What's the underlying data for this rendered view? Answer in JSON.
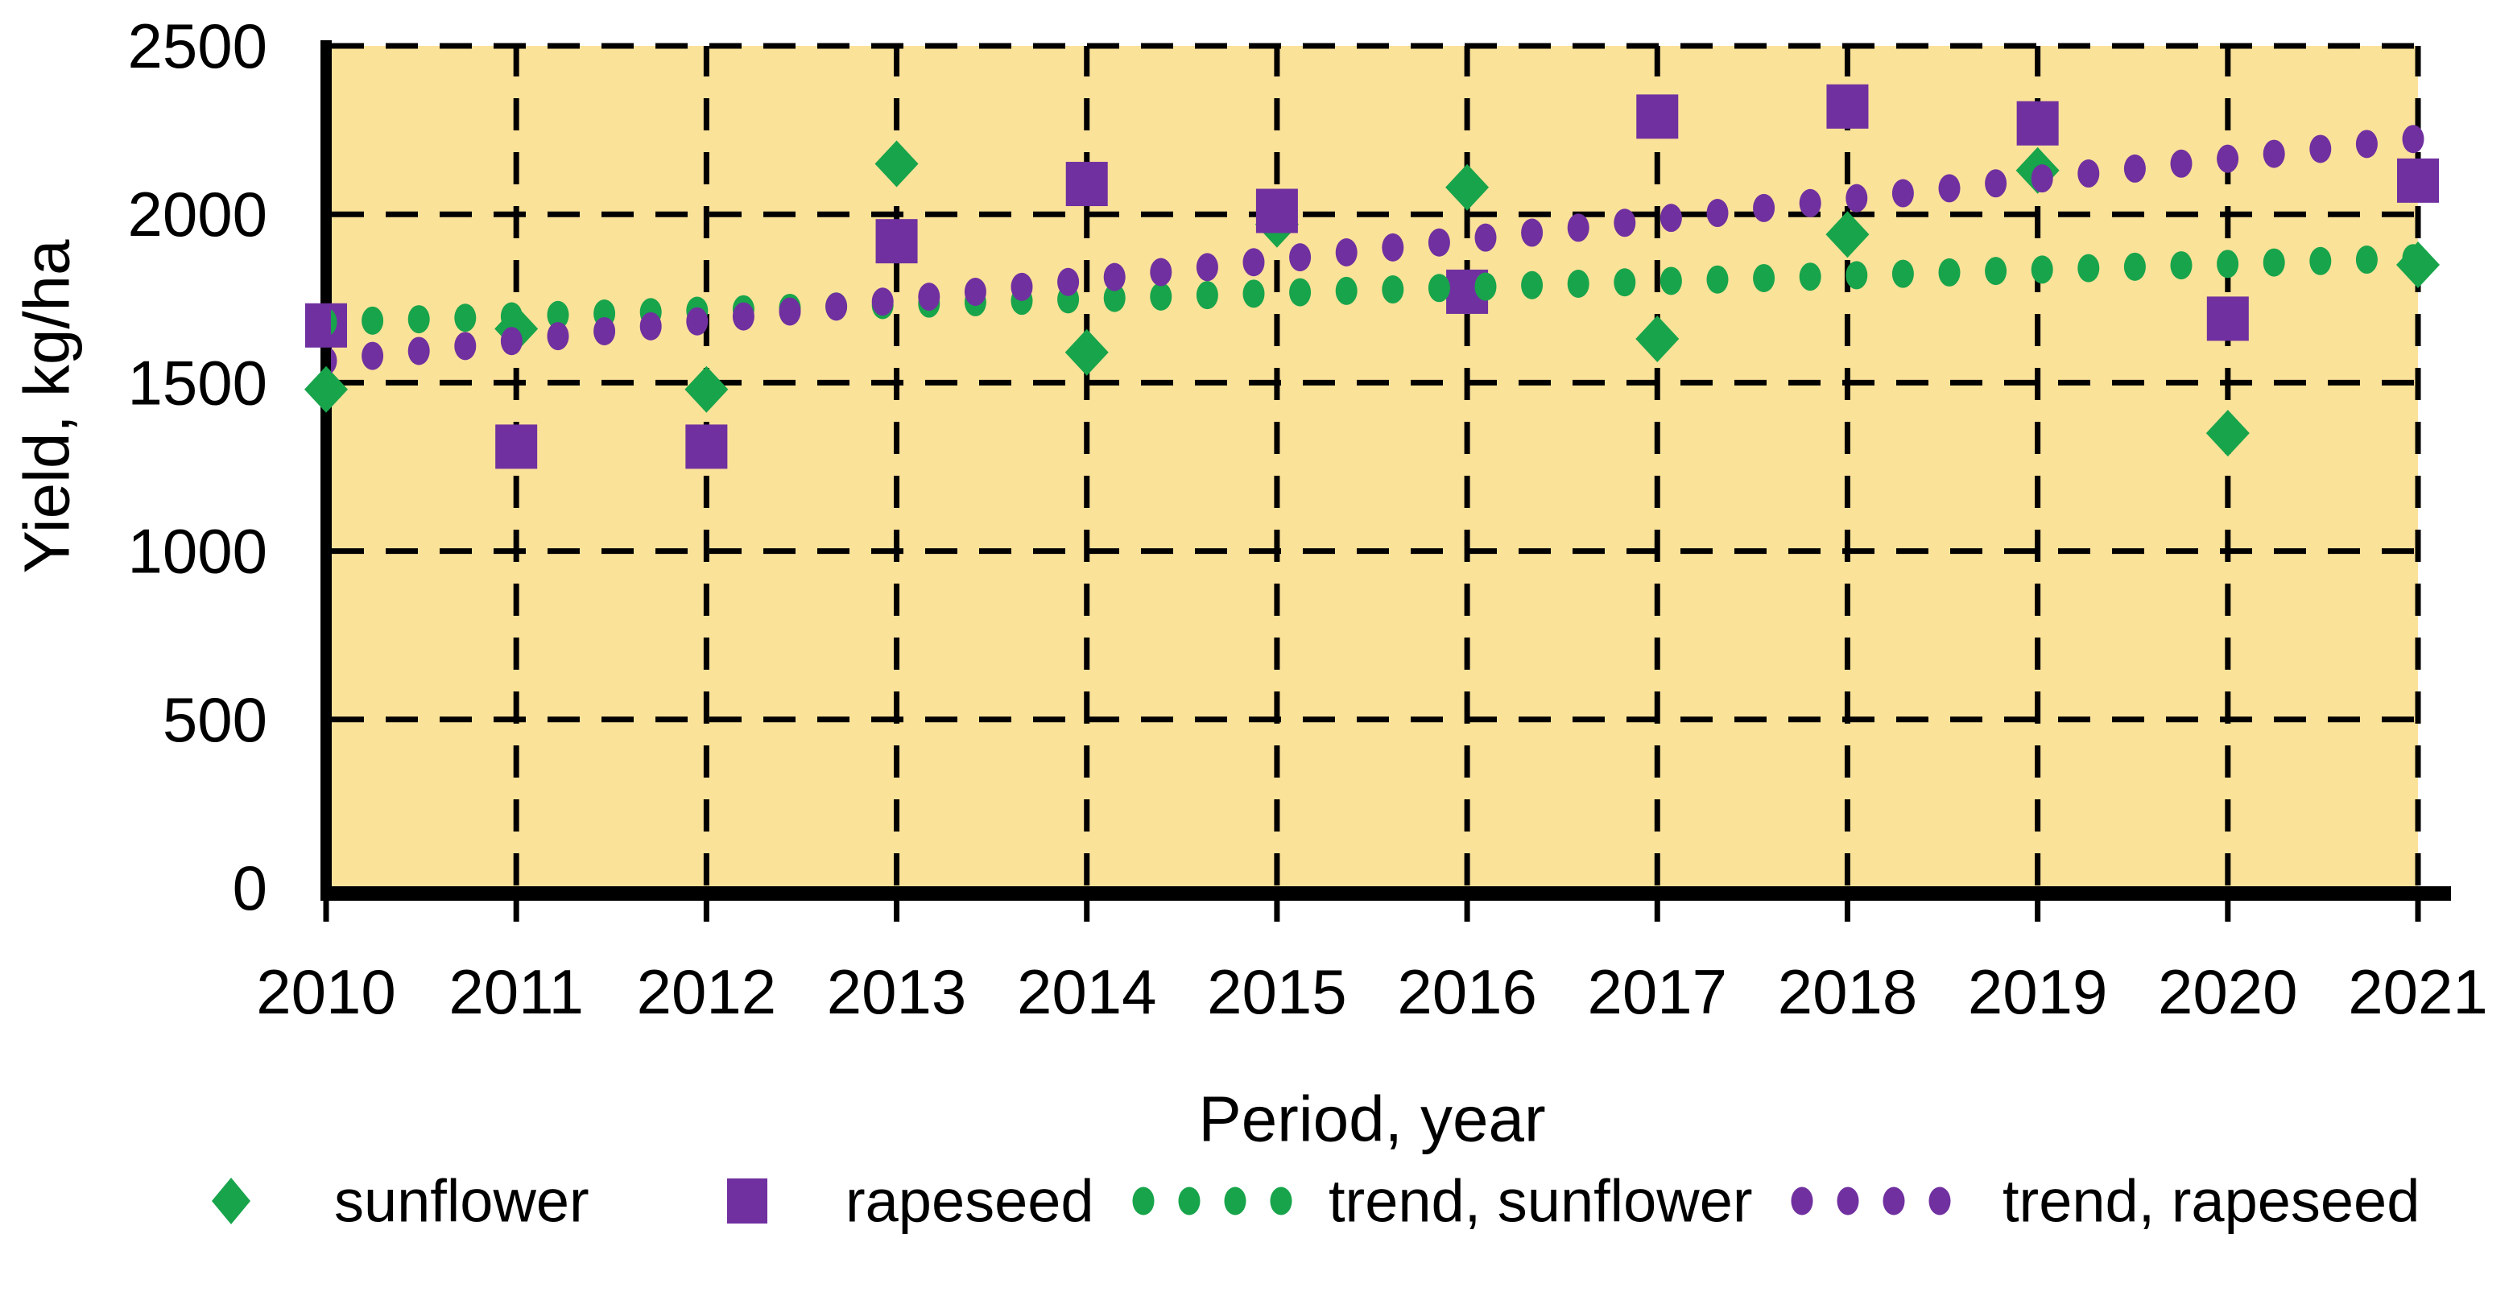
{
  "chart_data": {
    "type": "scatter",
    "title": "",
    "xlabel": "Period, year",
    "ylabel": "Yield, kg/ha",
    "x": [
      2010,
      2011,
      2012,
      2013,
      2014,
      2015,
      2016,
      2017,
      2018,
      2019,
      2020,
      2021
    ],
    "y_ticks": [
      0,
      500,
      1000,
      1500,
      2000,
      2500
    ],
    "xlim": [
      2010,
      2021
    ],
    "ylim": [
      0,
      2500
    ],
    "grid": "dashed-black-both-axes",
    "legend_position": "bottom",
    "plot_background_color": "#FBE299",
    "axis_color": "#000000",
    "series": [
      {
        "name": "sunflower",
        "marker": "diamond",
        "color": "#18A44B",
        "values": [
          1480,
          1660,
          1480,
          2150,
          1590,
          1970,
          2080,
          1630,
          1940,
          2130,
          1350,
          1850
        ]
      },
      {
        "name": "rapeseed",
        "marker": "square",
        "color": "#7030A0",
        "values": [
          1670,
          1310,
          1310,
          1920,
          2090,
          2010,
          1770,
          2290,
          2320,
          2270,
          1690,
          2100
        ]
      },
      {
        "name": "trend, sunflower",
        "marker": "dotted-line",
        "color": "#18A44B",
        "trend": {
          "start_year": 2010,
          "end_year": 2021,
          "start_value": 1680,
          "end_value": 1870
        }
      },
      {
        "name": "trend, rapeseed",
        "marker": "dotted-line",
        "color": "#7030A0",
        "trend": {
          "start_year": 2010,
          "end_year": 2021,
          "start_value": 1565,
          "end_value": 2225
        }
      }
    ]
  }
}
